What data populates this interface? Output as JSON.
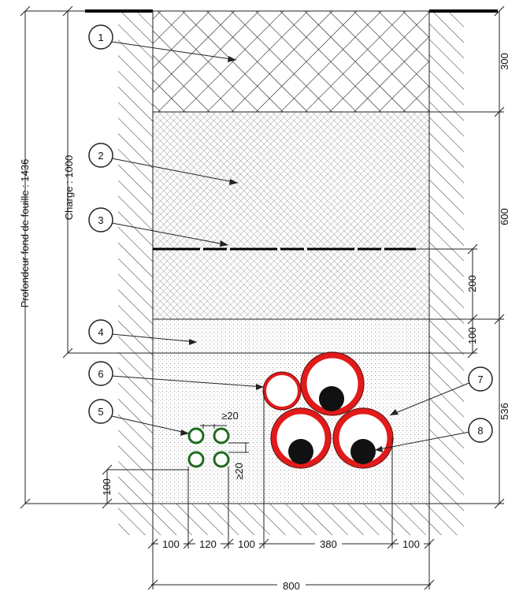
{
  "callouts": [
    {
      "n": "1"
    },
    {
      "n": "2"
    },
    {
      "n": "3"
    },
    {
      "n": "4"
    },
    {
      "n": "5"
    },
    {
      "n": "6"
    },
    {
      "n": "7"
    },
    {
      "n": "8"
    }
  ],
  "dimensions": {
    "left_total": "Profondeur fond de fouille : 1436",
    "charge": "Charge : 1000",
    "right": [
      "300",
      "600",
      "536"
    ],
    "inner_right": [
      "200",
      "100"
    ],
    "bottom_parts": [
      "100",
      "120",
      "100",
      "380",
      "100"
    ],
    "bottom_total": "800",
    "small_spacing": "≥20",
    "small_spacing_v": "≥20",
    "left_small": "100"
  },
  "colors": {
    "red": "#e21a1a",
    "pipe_outline": "#6b0c0c",
    "green": "#1f6b1f",
    "hatch": "#555555"
  }
}
